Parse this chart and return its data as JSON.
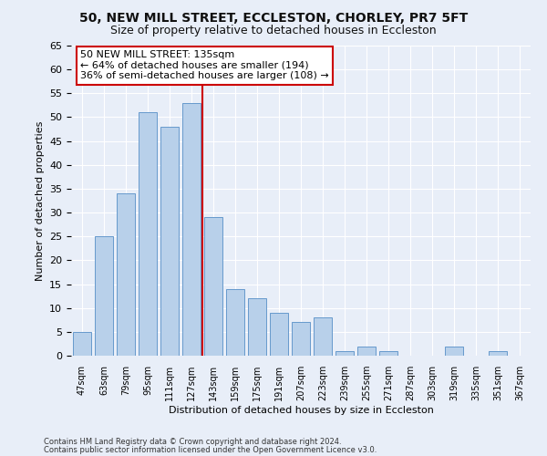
{
  "title1": "50, NEW MILL STREET, ECCLESTON, CHORLEY, PR7 5FT",
  "title2": "Size of property relative to detached houses in Eccleston",
  "xlabel": "Distribution of detached houses by size in Eccleston",
  "ylabel": "Number of detached properties",
  "categories": [
    "47sqm",
    "63sqm",
    "79sqm",
    "95sqm",
    "111sqm",
    "127sqm",
    "143sqm",
    "159sqm",
    "175sqm",
    "191sqm",
    "207sqm",
    "223sqm",
    "239sqm",
    "255sqm",
    "271sqm",
    "287sqm",
    "303sqm",
    "319sqm",
    "335sqm",
    "351sqm",
    "367sqm"
  ],
  "values": [
    5,
    25,
    34,
    51,
    48,
    53,
    29,
    14,
    12,
    9,
    7,
    8,
    1,
    2,
    1,
    0,
    0,
    2,
    0,
    1,
    0
  ],
  "bar_color": "#b8d0ea",
  "bar_edge_color": "#6699cc",
  "annotation_line0": "50 NEW MILL STREET: 135sqm",
  "annotation_line1": "← 64% of detached houses are smaller (194)",
  "annotation_line2": "36% of semi-detached houses are larger (108) →",
  "annotation_box_facecolor": "#ffffff",
  "annotation_box_edgecolor": "#cc0000",
  "vline_color": "#cc0000",
  "ylim": [
    0,
    65
  ],
  "yticks": [
    0,
    5,
    10,
    15,
    20,
    25,
    30,
    35,
    40,
    45,
    50,
    55,
    60,
    65
  ],
  "footnote1": "Contains HM Land Registry data © Crown copyright and database right 2024.",
  "footnote2": "Contains public sector information licensed under the Open Government Licence v3.0.",
  "bg_color": "#e8eef8",
  "plot_bg_color": "#e8eef8",
  "title1_fontsize": 10,
  "title2_fontsize": 9,
  "xlabel_fontsize": 8,
  "ylabel_fontsize": 8,
  "bar_width": 0.85,
  "vline_x_index": 5.5,
  "annot_text_fontsize": 8
}
